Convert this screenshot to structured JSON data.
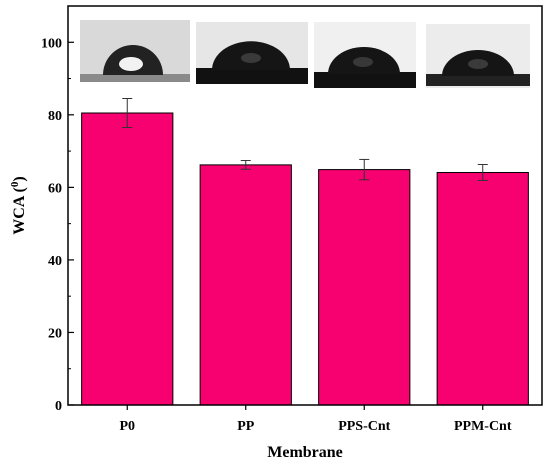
{
  "chart_data": {
    "type": "bar",
    "categories": [
      "P0",
      "PP",
      "PPS-Cnt",
      "PPM-Cnt"
    ],
    "values": [
      80.5,
      66.2,
      64.9,
      64.1
    ],
    "errors": [
      4.0,
      1.2,
      2.8,
      2.2
    ],
    "xlabel": "Membrane",
    "ylabel": "WCA",
    "ylabel_unit": "0",
    "ylim": [
      0,
      110
    ],
    "yticks": [
      0,
      20,
      40,
      60,
      80,
      100
    ],
    "bar_color": "#f7006f",
    "grid": false,
    "insets": [
      "droplet-photo-P0",
      "droplet-photo-PP",
      "droplet-photo-PPS-Cnt",
      "droplet-photo-PPM-Cnt"
    ]
  }
}
